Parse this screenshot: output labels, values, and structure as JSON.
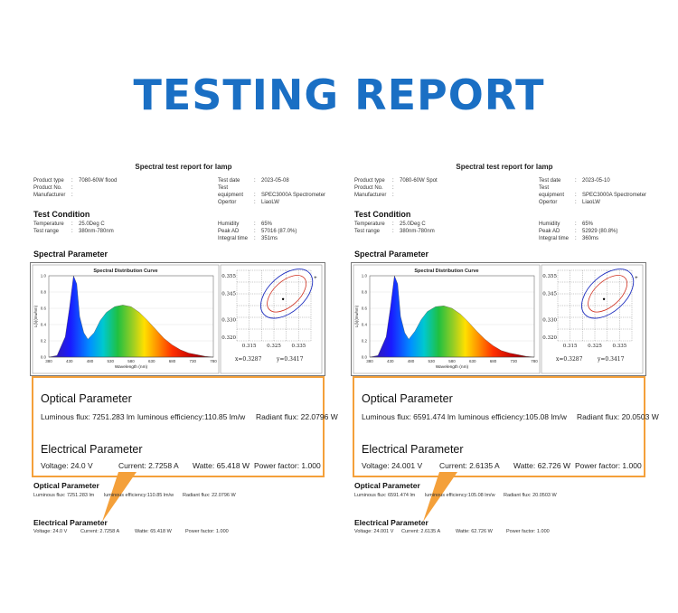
{
  "title": "TESTING REPORT",
  "reports": [
    {
      "report_title": "Spectral test report for lamp",
      "product": [
        {
          "label": "Product type",
          "value": "7080-60W flood"
        },
        {
          "label": "Product No.",
          "value": ""
        },
        {
          "label": "Manufacturer",
          "value": ""
        }
      ],
      "test": [
        {
          "label": "Test date",
          "value": "2023-05-08"
        },
        {
          "label": "Test equipment",
          "value": "SPEC3000A Spectrometer"
        },
        {
          "label": "Opertor",
          "value": "LiaoLW"
        }
      ],
      "test_condition_title": "Test Condition",
      "conditions_left": [
        {
          "label": "Temperature",
          "value": "25.0Deg C"
        },
        {
          "label": "Test range",
          "value": "380nm-780nm"
        }
      ],
      "conditions_right": [
        {
          "label": "Humidity",
          "value": "65%"
        },
        {
          "label": "Peak AD",
          "value": "57016 (87.0%)"
        },
        {
          "label": "Integral time",
          "value": "351ms"
        }
      ],
      "spectral_title": "Spectral Parameter",
      "chart_title": "Spectral Distribution Curve",
      "chart_ylabel": "L(λ)(mw/nm)",
      "chart_xlabel": "Wavelength (nm)",
      "cie_x": "x=0.3287",
      "cie_y": "y=0.3417",
      "optical_title": "Optical Parameter",
      "optical": {
        "luminous_flux": "Luminous flux: 7251.283 lm",
        "efficiency": "luminous efficiency:110.85 lm/w",
        "radiant": "Radiant flux: 22.0796 W"
      },
      "electrical_title": "Electrical Parameter",
      "electrical": {
        "voltage": "Voltage: 24.0  V",
        "current": "Current: 2.7258  A",
        "watte": "Watte: 65.418  W",
        "pf": "Power factor: 1.000"
      }
    },
    {
      "report_title": "Spectral test report for lamp",
      "product": [
        {
          "label": "Product type",
          "value": "7080-60W Spot"
        },
        {
          "label": "Product No.",
          "value": ""
        },
        {
          "label": "Manufacturer",
          "value": ""
        }
      ],
      "test": [
        {
          "label": "Test date",
          "value": "2023-05-10"
        },
        {
          "label": "Test equipment",
          "value": "SPEC3000A Spectrometer"
        },
        {
          "label": "Opertor",
          "value": "LiaoLW"
        }
      ],
      "test_condition_title": "Test Condition",
      "conditions_left": [
        {
          "label": "Temperature",
          "value": "25.0Deg C"
        },
        {
          "label": "Test range",
          "value": "380nm-780nm"
        }
      ],
      "conditions_right": [
        {
          "label": "Humidity",
          "value": "65%"
        },
        {
          "label": "Peak AD",
          "value": "52929 (80.8%)"
        },
        {
          "label": "Integral time",
          "value": "360ms"
        }
      ],
      "spectral_title": "Spectral Parameter",
      "chart_title": "Spectral Distribution Curve",
      "chart_ylabel": "L(λ)(mw/nm)",
      "chart_xlabel": "Wavelength (nm)",
      "cie_x": "x=0.3287",
      "cie_y": "y=0.3417",
      "optical_title": "Optical Parameter",
      "optical": {
        "luminous_flux": "Luminous flux: 6591.474 lm",
        "efficiency": "luminous efficiency:105.08 lm/w",
        "radiant": "Radiant flux: 20.0503 W"
      },
      "electrical_title": "Electrical Parameter",
      "electrical": {
        "voltage": "Voltage: 24.001  V",
        "current": "Current: 2.6135  A",
        "watte": "Watte: 62.726  W",
        "pf": "Power factor: 1.000"
      }
    }
  ],
  "chart_data": [
    {
      "type": "area",
      "title": "Spectral Distribution Curve",
      "xlabel": "Wavelength (nm)",
      "ylabel": "L(λ)(mw/nm)",
      "xlim": [
        380,
        780
      ],
      "ylim": [
        0,
        1.0
      ],
      "x_ticks": [
        380,
        430,
        480,
        530,
        580,
        630,
        680,
        730,
        780
      ],
      "y_ticks": [
        0,
        0.2,
        0.4,
        0.6,
        0.8,
        1.0
      ],
      "x": [
        380,
        400,
        420,
        430,
        440,
        448,
        455,
        465,
        475,
        490,
        505,
        520,
        540,
        560,
        580,
        600,
        620,
        640,
        660,
        680,
        700,
        720,
        740,
        760,
        780
      ],
      "values": [
        0.0,
        0.02,
        0.25,
        0.6,
        1.0,
        0.9,
        0.5,
        0.3,
        0.22,
        0.3,
        0.45,
        0.55,
        0.62,
        0.64,
        0.62,
        0.55,
        0.45,
        0.34,
        0.23,
        0.15,
        0.09,
        0.05,
        0.03,
        0.01,
        0.0
      ]
    },
    {
      "type": "area",
      "title": "Spectral Distribution Curve",
      "xlabel": "Wavelength (nm)",
      "ylabel": "L(λ)(mw/nm)",
      "xlim": [
        380,
        780
      ],
      "ylim": [
        0,
        1.0
      ],
      "x_ticks": [
        380,
        430,
        480,
        530,
        580,
        630,
        680,
        730,
        780
      ],
      "y_ticks": [
        0,
        0.2,
        0.4,
        0.6,
        0.8,
        1.0
      ],
      "x": [
        380,
        400,
        420,
        430,
        440,
        448,
        455,
        465,
        475,
        490,
        505,
        520,
        540,
        560,
        580,
        600,
        620,
        640,
        660,
        680,
        700,
        720,
        740,
        760,
        780
      ],
      "values": [
        0.0,
        0.02,
        0.25,
        0.6,
        1.0,
        0.9,
        0.5,
        0.3,
        0.22,
        0.32,
        0.46,
        0.56,
        0.62,
        0.63,
        0.6,
        0.53,
        0.43,
        0.32,
        0.22,
        0.14,
        0.08,
        0.05,
        0.03,
        0.01,
        0.0
      ]
    },
    {
      "type": "scatter",
      "title": "",
      "x_ticks": [
        0.315,
        0.325,
        0.335
      ],
      "y_ticks": [
        0.32,
        0.33,
        0.345,
        0.355
      ],
      "xlim": [
        0.31,
        0.34
      ],
      "ylim": [
        0.318,
        0.358
      ],
      "point": {
        "x": 0.3287,
        "y": 0.3417
      }
    }
  ]
}
